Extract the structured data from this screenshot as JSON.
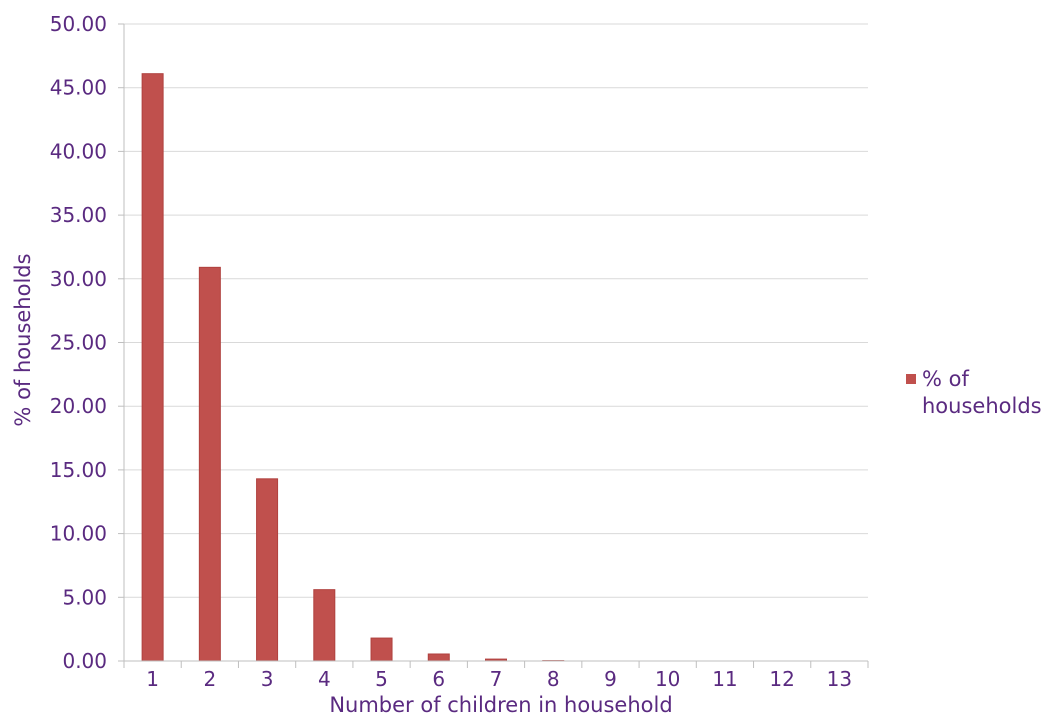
{
  "chart_data": {
    "type": "bar",
    "categories": [
      "1",
      "2",
      "3",
      "4",
      "5",
      "6",
      "7",
      "8",
      "9",
      "10",
      "11",
      "12",
      "13"
    ],
    "series": [
      {
        "name": "% of households",
        "values": [
          46.1,
          30.9,
          14.3,
          5.6,
          1.8,
          0.55,
          0.15,
          0.03,
          0.01,
          0.0,
          0.0,
          0.0,
          0.0
        ]
      }
    ],
    "title": "",
    "xlabel": "Number of children in household",
    "ylabel": "% of households",
    "ylim": [
      0,
      50
    ],
    "yticks": [
      "0.00",
      "5.00",
      "10.00",
      "15.00",
      "20.00",
      "25.00",
      "30.00",
      "35.00",
      "40.00",
      "45.00",
      "50.00"
    ],
    "grid": true,
    "legend": {
      "position": "right",
      "entries": [
        "% of",
        "households"
      ]
    },
    "colors": {
      "bar": "#c0504d",
      "text": "#5a2a80",
      "grid": "#d9d9d9"
    }
  }
}
